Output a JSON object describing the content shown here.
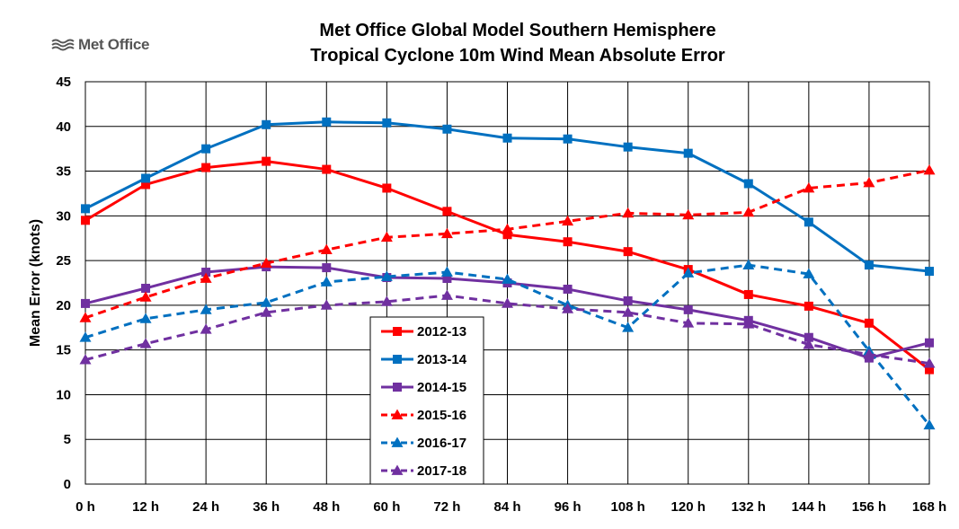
{
  "logo": {
    "text": "Met Office",
    "icon": "met-office-wave-icon"
  },
  "chart_data": {
    "type": "line",
    "title": [
      "Met Office Global Model Southern Hemisphere",
      "Tropical Cyclone 10m Wind Mean Absolute Error"
    ],
    "xlabel": "",
    "ylabel": "Mean Error (knots)",
    "ylim": [
      0,
      45
    ],
    "yticks": [
      "0",
      "5",
      "10",
      "15",
      "20",
      "25",
      "30",
      "35",
      "40",
      "45"
    ],
    "categories": [
      "0 h",
      "12 h",
      "24 h",
      "36 h",
      "48 h",
      "60 h",
      "72 h",
      "84 h",
      "96 h",
      "108 h",
      "120 h",
      "132 h",
      "144 h",
      "156 h",
      "168 h"
    ],
    "grid": true,
    "legend": "center",
    "series": [
      {
        "name": "2012-13",
        "color": "#ff0000",
        "dash": false,
        "marker": "square",
        "values": [
          29.5,
          33.5,
          35.4,
          36.1,
          35.2,
          33.1,
          30.5,
          27.9,
          27.1,
          26.0,
          24.0,
          21.2,
          19.9,
          18.0,
          12.8
        ]
      },
      {
        "name": "2013-14",
        "color": "#0070c0",
        "dash": false,
        "marker": "square",
        "values": [
          30.8,
          34.2,
          37.5,
          40.2,
          40.5,
          40.4,
          39.7,
          38.7,
          38.6,
          37.7,
          37.0,
          33.6,
          29.3,
          24.5,
          23.8
        ]
      },
      {
        "name": "2014-15",
        "color": "#7030a0",
        "dash": false,
        "marker": "square",
        "values": [
          20.2,
          21.9,
          23.7,
          24.3,
          24.2,
          23.1,
          23.0,
          22.5,
          21.8,
          20.5,
          19.5,
          18.3,
          16.4,
          14.1,
          15.8
        ]
      },
      {
        "name": "2015-16",
        "color": "#ff0000",
        "dash": true,
        "marker": "triangle",
        "values": [
          18.6,
          20.9,
          23.0,
          24.7,
          26.2,
          27.6,
          28.0,
          28.5,
          29.4,
          30.3,
          30.1,
          30.4,
          33.1,
          33.7,
          35.1
        ]
      },
      {
        "name": "2016-17",
        "color": "#0070c0",
        "dash": true,
        "marker": "triangle",
        "values": [
          16.4,
          18.5,
          19.5,
          20.3,
          22.6,
          23.2,
          23.7,
          22.9,
          20.0,
          17.5,
          23.6,
          24.5,
          23.5,
          14.9,
          6.6
        ]
      },
      {
        "name": "2017-18",
        "color": "#7030a0",
        "dash": true,
        "marker": "triangle",
        "values": [
          13.9,
          15.7,
          17.3,
          19.2,
          20.0,
          20.4,
          21.1,
          20.2,
          19.6,
          19.2,
          18.0,
          17.9,
          15.6,
          14.5,
          13.5
        ]
      }
    ]
  }
}
